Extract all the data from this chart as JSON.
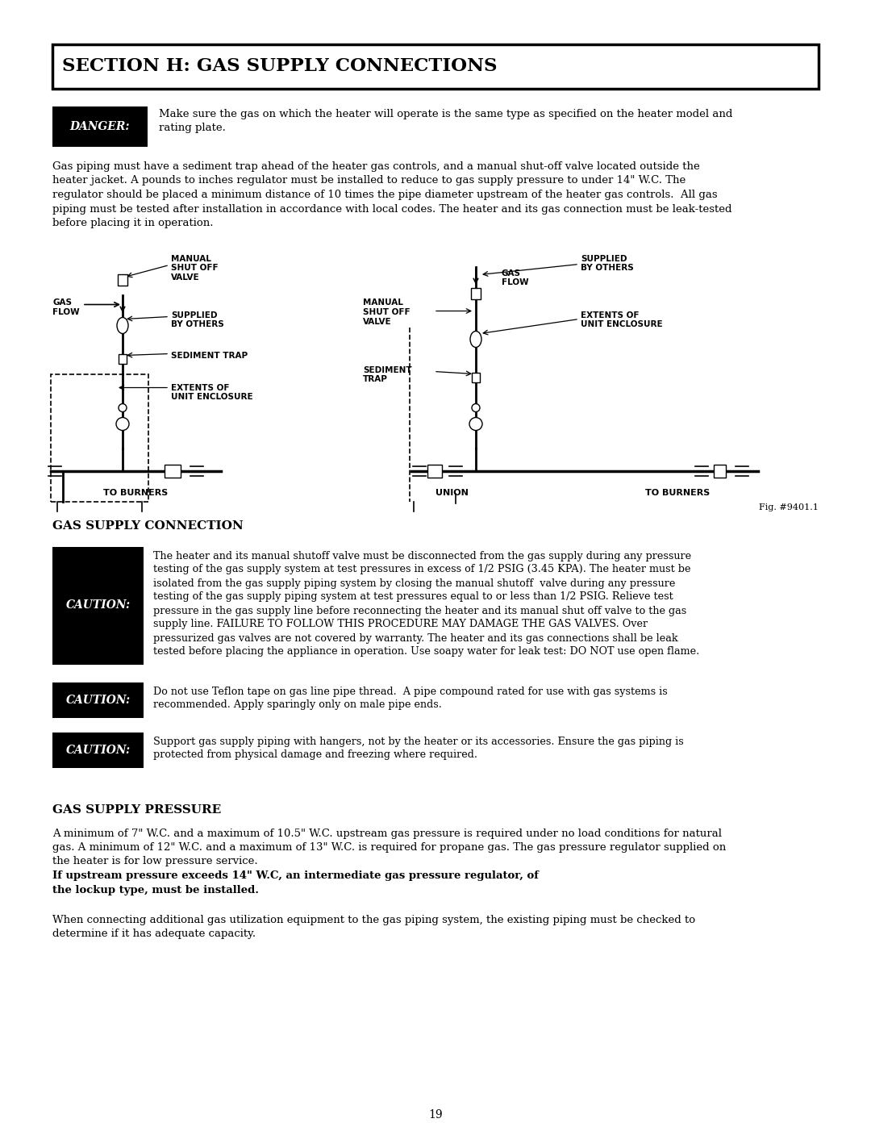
{
  "title": "SECTION H: GAS SUPPLY CONNECTIONS",
  "page_bg": "#ffffff",
  "page_number": "19",
  "danger_label": "DANGER:",
  "danger_text_line1": "Make sure the gas on which the heater will operate is the same type as specified on the heater model and",
  "danger_text_line2": "rating plate.",
  "body_text1": "Gas piping must have a sediment trap ahead of the heater gas controls, and a manual shut-off valve located outside the\nheater jacket. A pounds to inches regulator must be installed to reduce to gas supply pressure to under 14\" W.C. The\nregulator should be placed a minimum distance of 10 times the pipe diameter upstream of the heater gas controls.  All gas\npiping must be tested after installation in accordance with local codes. The heater and its gas connection must be leak-tested\nbefore placing it in operation.",
  "fig_label": "Fig. #9401.1",
  "section2_title": "GAS SUPPLY CONNECTION",
  "caution1_label": "CAUTION:",
  "caution1_text": "The heater and its manual shutoff valve must be disconnected from the gas supply during any pressure\ntesting of the gas supply system at test pressures in excess of 1/2 PSIG (3.45 KPA). The heater must be\nisolated from the gas supply piping system by closing the manual shutoff  valve during any pressure\ntesting of the gas supply piping system at test pressures equal to or less than 1/2 PSIG. Relieve test\npressure in the gas supply line before reconnecting the heater and its manual shut off valve to the gas\nsupply line. FAILURE TO FOLLOW THIS PROCEDURE MAY DAMAGE THE GAS VALVES. Over\npressurized gas valves are not covered by warranty. The heater and its gas connections shall be leak\ntested before placing the appliance in operation. Use soapy water for leak test: DO NOT use open flame.",
  "caution2_label": "CAUTION:",
  "caution2_text": "Do not use Teflon tape on gas line pipe thread.  A pipe compound rated for use with gas systems is\nrecommended. Apply sparingly only on male pipe ends.",
  "caution3_label": "CAUTION:",
  "caution3_text": "Support gas supply piping with hangers, not by the heater or its accessories. Ensure the gas piping is\nprotected from physical damage and freezing where required.",
  "section3_title": "GAS SUPPLY PRESSURE",
  "body_text2_line1": "A minimum of 7\" W.C. and a maximum of 10.5\" W.C. upstream gas pressure is required under no load conditions for natural",
  "body_text2_line2": "gas. A minimum of 12\" W.C. and a maximum of 13\" W.C. is required for propane gas. The gas pressure regulator supplied on",
  "body_text2_line3": "the heater is for low pressure service. ",
  "body_text2_bold1": "If upstream pressure exceeds 14\" W.C, an intermediate gas pressure regulator, of",
  "body_text2_bold2": "the lockup type, must be installed.",
  "body_text3": "When connecting additional gas utilization equipment to the gas piping system, the existing piping must be checked to\ndetermine if it has adequate capacity."
}
